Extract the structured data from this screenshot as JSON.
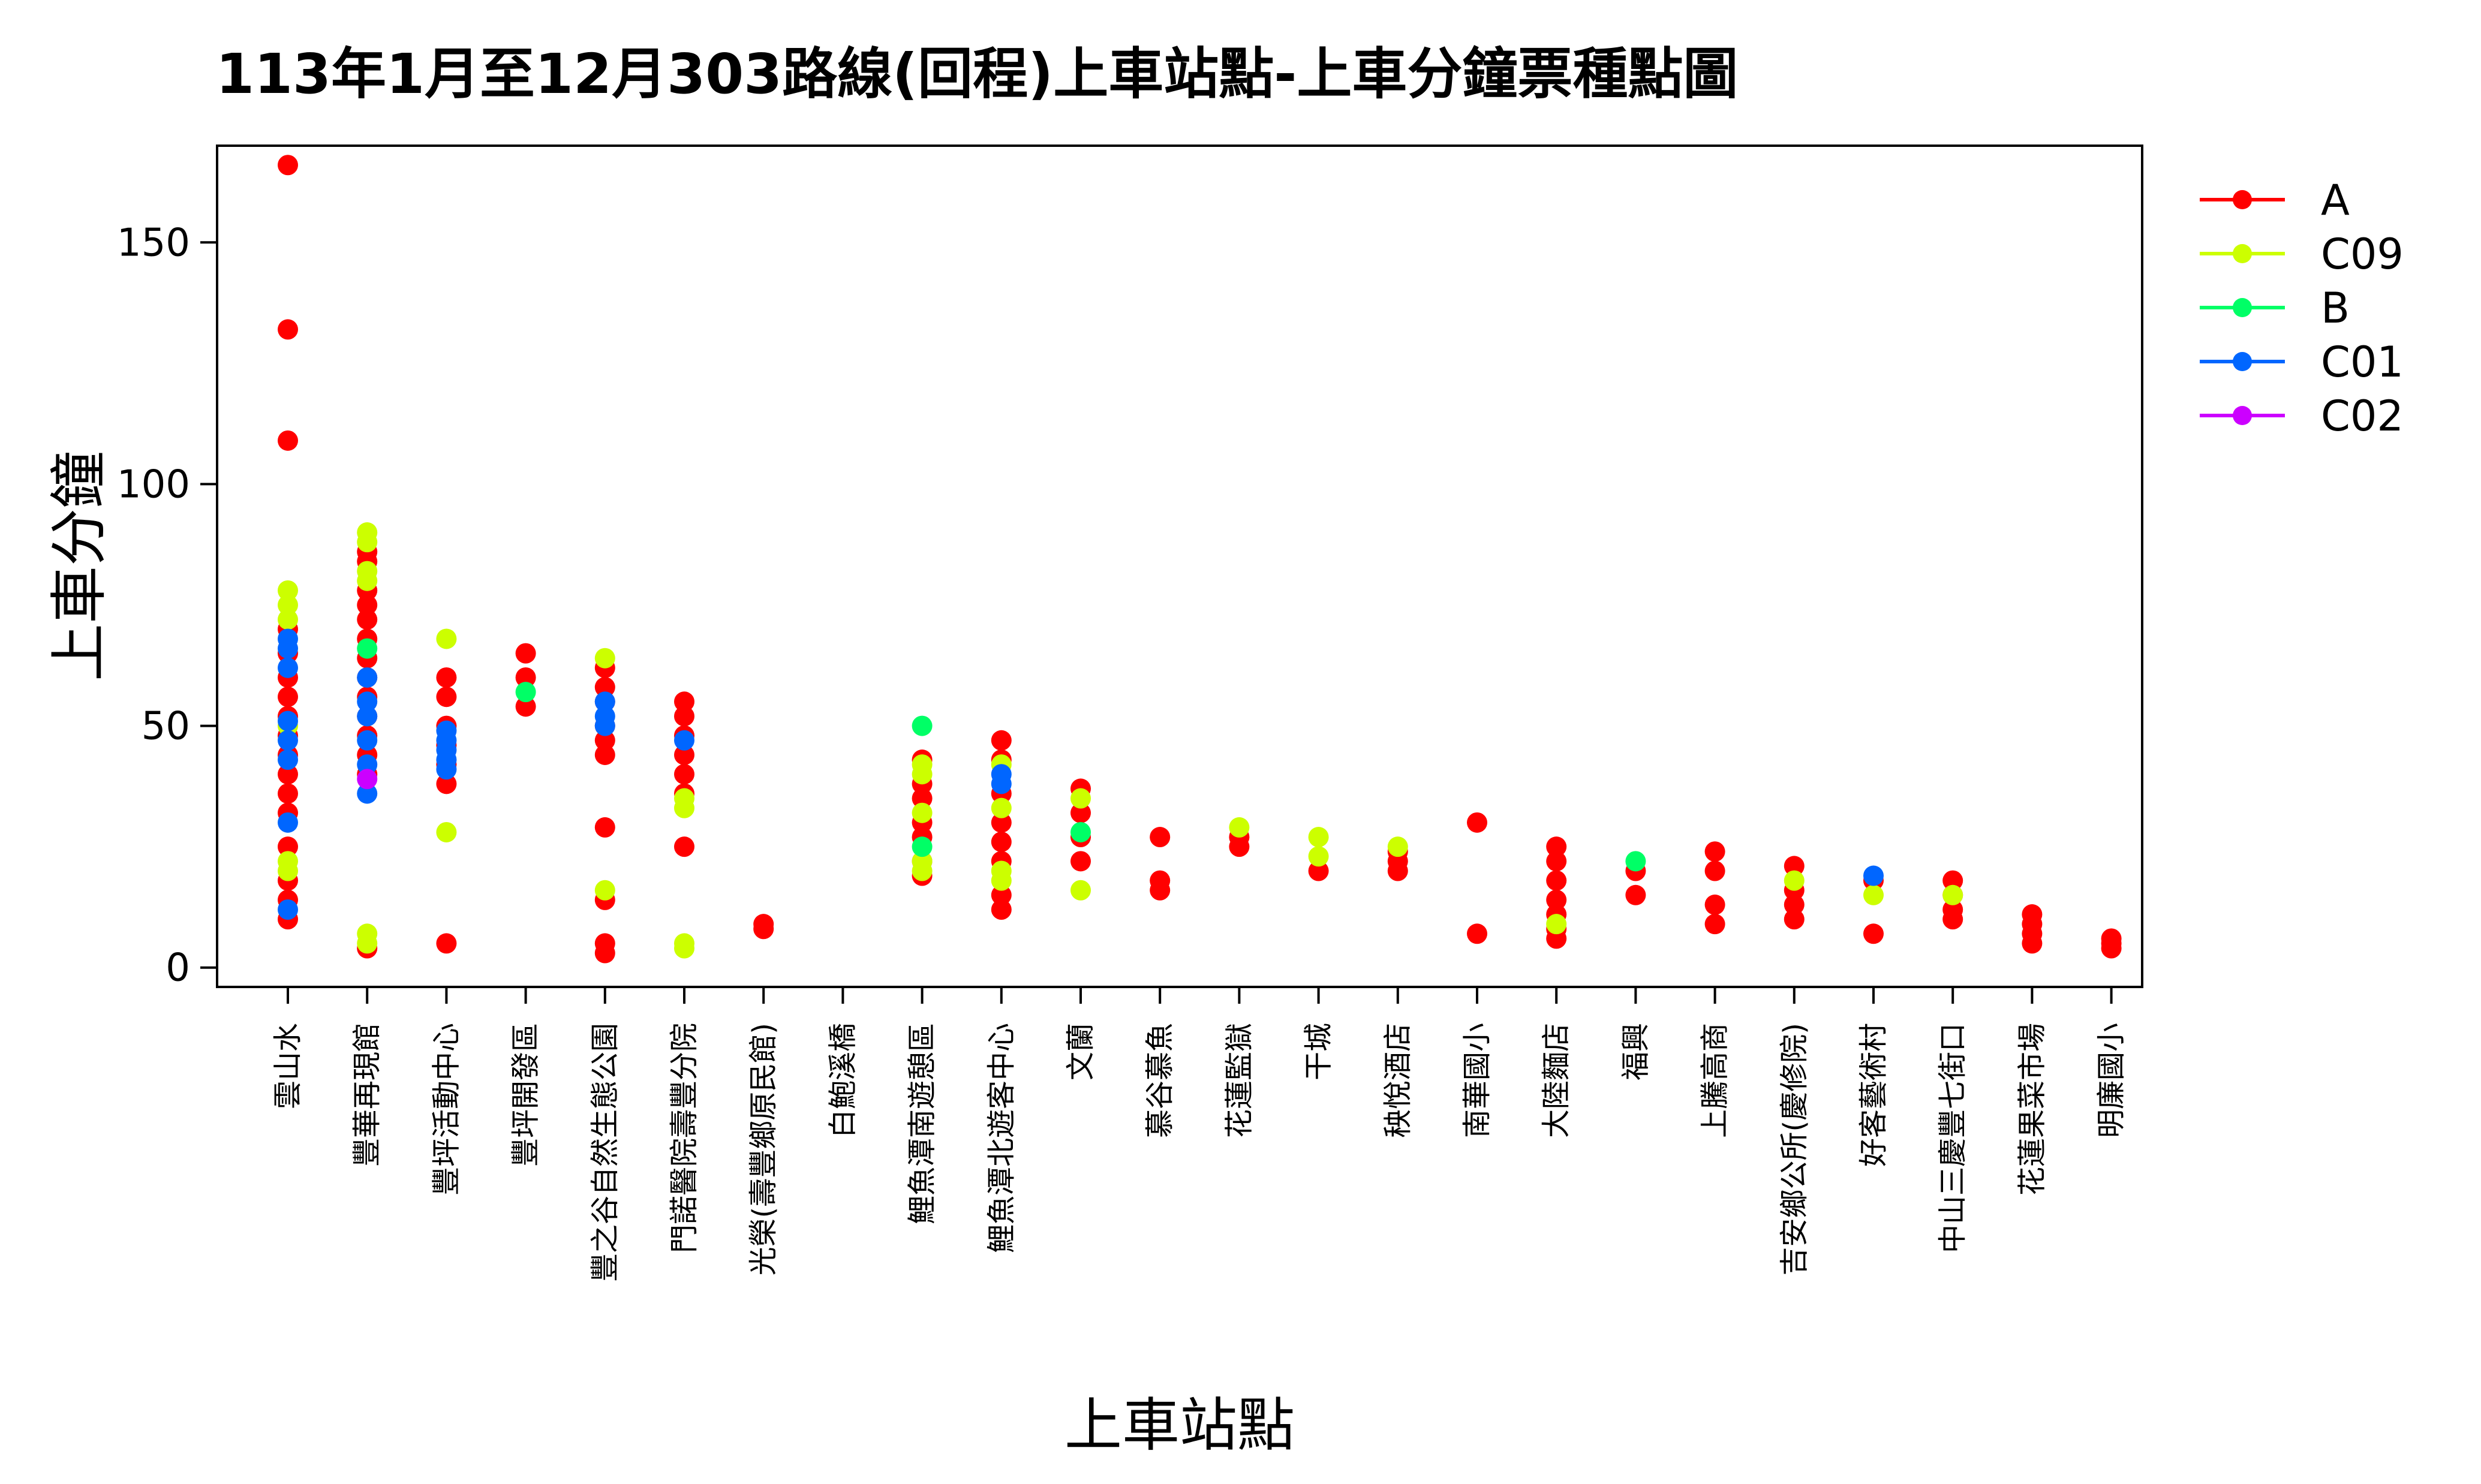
{
  "chart_data": {
    "type": "scatter",
    "title": "113年1月至12月303路線(回程)上車站點-上車分鐘票種點圖",
    "xlabel": "上車站點",
    "ylabel": "上車分鐘",
    "ylim": [
      -4,
      170
    ],
    "yticks": [
      0,
      50,
      100,
      150
    ],
    "legend_position": "right",
    "categories": [
      "雲山水",
      "豐華再現館",
      "豐坪活動中心",
      "豐坪開發區",
      "豐之谷自然生態公園",
      "門諾醫院壽豐分院",
      "光榮(壽豐鄉原民館)",
      "白鮑溪橋",
      "鯉魚潭南遊憩區",
      "鯉魚潭北遊客中心",
      "文蘭",
      "慕谷慕魚",
      "花蓮監獄",
      "干城",
      "秧悅酒店",
      "南華國小",
      "大陸麵店",
      "福興",
      "上騰高商",
      "吉安鄉公所(慶修院)",
      "好客藝術村",
      "中山三慶豐七街口",
      "花蓮果菜市場",
      "明廉國小"
    ],
    "series": [
      {
        "name": "A",
        "color": "#ff0000",
        "points": [
          [
            0,
            166
          ],
          [
            0,
            132
          ],
          [
            0,
            109
          ],
          [
            0,
            70
          ],
          [
            0,
            65
          ],
          [
            0,
            60
          ],
          [
            0,
            56
          ],
          [
            0,
            52
          ],
          [
            0,
            48
          ],
          [
            0,
            44
          ],
          [
            0,
            40
          ],
          [
            0,
            36
          ],
          [
            0,
            32
          ],
          [
            0,
            25
          ],
          [
            0,
            18
          ],
          [
            0,
            14
          ],
          [
            0,
            10
          ],
          [
            1,
            86
          ],
          [
            1,
            84
          ],
          [
            1,
            78
          ],
          [
            1,
            75
          ],
          [
            1,
            72
          ],
          [
            1,
            68
          ],
          [
            1,
            64
          ],
          [
            1,
            60
          ],
          [
            1,
            56
          ],
          [
            1,
            52
          ],
          [
            1,
            48
          ],
          [
            1,
            44
          ],
          [
            1,
            40
          ],
          [
            1,
            4
          ],
          [
            2,
            60
          ],
          [
            2,
            56
          ],
          [
            2,
            50
          ],
          [
            2,
            46
          ],
          [
            2,
            42
          ],
          [
            2,
            38
          ],
          [
            2,
            5
          ],
          [
            3,
            65
          ],
          [
            3,
            60
          ],
          [
            3,
            54
          ],
          [
            4,
            62
          ],
          [
            4,
            58
          ],
          [
            4,
            55
          ],
          [
            4,
            50
          ],
          [
            4,
            47
          ],
          [
            4,
            44
          ],
          [
            4,
            29
          ],
          [
            4,
            14
          ],
          [
            4,
            5
          ],
          [
            4,
            3
          ],
          [
            5,
            55
          ],
          [
            5,
            52
          ],
          [
            5,
            48
          ],
          [
            5,
            44
          ],
          [
            5,
            40
          ],
          [
            5,
            36
          ],
          [
            5,
            25
          ],
          [
            6,
            9
          ],
          [
            6,
            8
          ],
          [
            8,
            43
          ],
          [
            8,
            38
          ],
          [
            8,
            35
          ],
          [
            8,
            30
          ],
          [
            8,
            27
          ],
          [
            8,
            22
          ],
          [
            8,
            19
          ],
          [
            9,
            47
          ],
          [
            9,
            43
          ],
          [
            9,
            36
          ],
          [
            9,
            30
          ],
          [
            9,
            26
          ],
          [
            9,
            22
          ],
          [
            9,
            15
          ],
          [
            9,
            12
          ],
          [
            10,
            37
          ],
          [
            10,
            32
          ],
          [
            10,
            27
          ],
          [
            10,
            22
          ],
          [
            11,
            27
          ],
          [
            11,
            18
          ],
          [
            11,
            16
          ],
          [
            12,
            27
          ],
          [
            12,
            25
          ],
          [
            13,
            20
          ],
          [
            14,
            24
          ],
          [
            14,
            22
          ],
          [
            14,
            20
          ],
          [
            15,
            30
          ],
          [
            15,
            7
          ],
          [
            16,
            25
          ],
          [
            16,
            22
          ],
          [
            16,
            18
          ],
          [
            16,
            14
          ],
          [
            16,
            11
          ],
          [
            16,
            8
          ],
          [
            16,
            6
          ],
          [
            17,
            20
          ],
          [
            17,
            15
          ],
          [
            18,
            24
          ],
          [
            18,
            20
          ],
          [
            18,
            13
          ],
          [
            18,
            9
          ],
          [
            19,
            21
          ],
          [
            19,
            16
          ],
          [
            19,
            13
          ],
          [
            19,
            10
          ],
          [
            20,
            18
          ],
          [
            20,
            7
          ],
          [
            21,
            18
          ],
          [
            21,
            15
          ],
          [
            21,
            12
          ],
          [
            21,
            10
          ],
          [
            22,
            11
          ],
          [
            22,
            9
          ],
          [
            22,
            7
          ],
          [
            22,
            5
          ],
          [
            23,
            6
          ],
          [
            23,
            5
          ],
          [
            23,
            4
          ]
        ]
      },
      {
        "name": "C09",
        "color": "#ccff00",
        "points": [
          [
            0,
            78
          ],
          [
            0,
            75
          ],
          [
            0,
            72
          ],
          [
            0,
            50
          ],
          [
            0,
            22
          ],
          [
            0,
            20
          ],
          [
            1,
            90
          ],
          [
            1,
            88
          ],
          [
            1,
            82
          ],
          [
            1,
            80
          ],
          [
            1,
            7
          ],
          [
            1,
            5
          ],
          [
            2,
            68
          ],
          [
            2,
            28
          ],
          [
            4,
            64
          ],
          [
            4,
            16
          ],
          [
            5,
            35
          ],
          [
            5,
            33
          ],
          [
            5,
            5
          ],
          [
            5,
            4
          ],
          [
            8,
            42
          ],
          [
            8,
            40
          ],
          [
            8,
            32
          ],
          [
            8,
            22
          ],
          [
            8,
            20
          ],
          [
            9,
            42
          ],
          [
            9,
            33
          ],
          [
            9,
            20
          ],
          [
            9,
            18
          ],
          [
            10,
            35
          ],
          [
            10,
            16
          ],
          [
            12,
            29
          ],
          [
            13,
            27
          ],
          [
            13,
            23
          ],
          [
            14,
            25
          ],
          [
            16,
            9
          ],
          [
            19,
            18
          ],
          [
            20,
            15
          ],
          [
            21,
            15
          ]
        ]
      },
      {
        "name": "B",
        "color": "#00ff66",
        "points": [
          [
            1,
            66
          ],
          [
            3,
            57
          ],
          [
            8,
            50
          ],
          [
            8,
            25
          ],
          [
            10,
            28
          ],
          [
            17,
            22
          ]
        ]
      },
      {
        "name": "C01",
        "color": "#0066ff",
        "points": [
          [
            0,
            68
          ],
          [
            0,
            66
          ],
          [
            0,
            62
          ],
          [
            0,
            51
          ],
          [
            0,
            47
          ],
          [
            0,
            43
          ],
          [
            0,
            30
          ],
          [
            0,
            12
          ],
          [
            1,
            60
          ],
          [
            1,
            55
          ],
          [
            1,
            52
          ],
          [
            1,
            47
          ],
          [
            1,
            42
          ],
          [
            1,
            36
          ],
          [
            2,
            49
          ],
          [
            2,
            47
          ],
          [
            2,
            45
          ],
          [
            2,
            43
          ],
          [
            2,
            41
          ],
          [
            4,
            55
          ],
          [
            4,
            52
          ],
          [
            4,
            50
          ],
          [
            5,
            47
          ],
          [
            9,
            40
          ],
          [
            9,
            38
          ],
          [
            20,
            19
          ]
        ]
      },
      {
        "name": "C02",
        "color": "#cc00ff",
        "points": [
          [
            1,
            39
          ]
        ]
      }
    ]
  }
}
